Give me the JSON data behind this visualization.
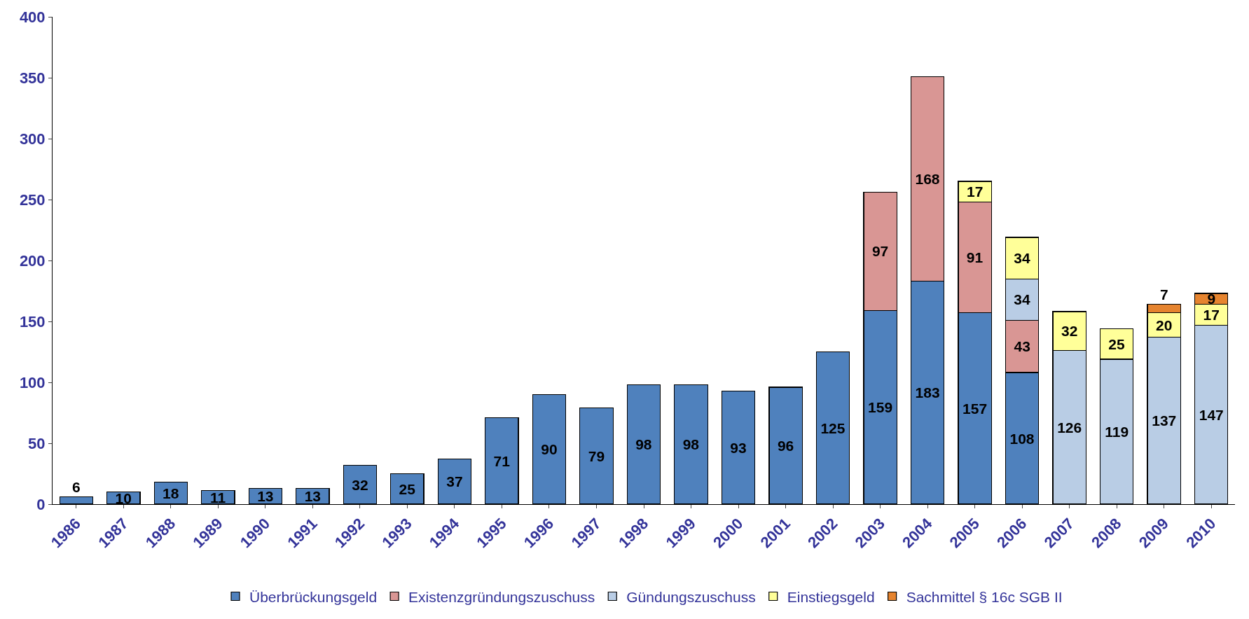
{
  "chart_data": {
    "type": "bar",
    "stacked": true,
    "data_labels": true,
    "grid": false,
    "legend": "bottom",
    "categories": [
      "1986",
      "1987",
      "1988",
      "1989",
      "1990",
      "1991",
      "1992",
      "1993",
      "1994",
      "1995",
      "1996",
      "1997",
      "1998",
      "1999",
      "2000",
      "2001",
      "2002",
      "2003",
      "2004",
      "2005",
      "2006",
      "2007",
      "2008",
      "2009",
      "2010"
    ],
    "series": [
      {
        "name": "Überbrückungsgeld",
        "color": "#4f81bd",
        "values": [
          6,
          10,
          18,
          11,
          13,
          13,
          32,
          25,
          37,
          71,
          90,
          79,
          98,
          98,
          93,
          96,
          125,
          159,
          183,
          157,
          108,
          null,
          null,
          null,
          null
        ]
      },
      {
        "name": "Existenzgründungszuschuss",
        "color": "#d99694",
        "values": [
          null,
          null,
          null,
          null,
          null,
          null,
          null,
          null,
          null,
          null,
          null,
          null,
          null,
          null,
          null,
          null,
          null,
          97,
          168,
          91,
          43,
          null,
          null,
          null,
          null
        ]
      },
      {
        "name": "Gündungszuschuss",
        "color": "#b9cde5",
        "values": [
          null,
          null,
          null,
          null,
          null,
          null,
          null,
          null,
          null,
          null,
          null,
          null,
          null,
          null,
          null,
          null,
          null,
          null,
          null,
          null,
          34,
          126,
          119,
          137,
          147
        ]
      },
      {
        "name": "Einstiegsgeld",
        "color": "#ffff99",
        "values": [
          null,
          null,
          null,
          null,
          null,
          null,
          null,
          null,
          null,
          null,
          null,
          null,
          null,
          null,
          null,
          null,
          null,
          null,
          null,
          17,
          34,
          32,
          25,
          20,
          17
        ]
      },
      {
        "name": "Sachmittel § 16c SGB II",
        "color": "#e6842f",
        "values": [
          null,
          null,
          null,
          null,
          null,
          null,
          null,
          null,
          null,
          null,
          null,
          null,
          null,
          null,
          null,
          null,
          null,
          null,
          null,
          null,
          null,
          null,
          null,
          7,
          9
        ]
      }
    ],
    "ylim": [
      0,
      400
    ],
    "yticks": [
      0,
      50,
      100,
      150,
      200,
      250,
      300,
      350,
      400
    ]
  }
}
